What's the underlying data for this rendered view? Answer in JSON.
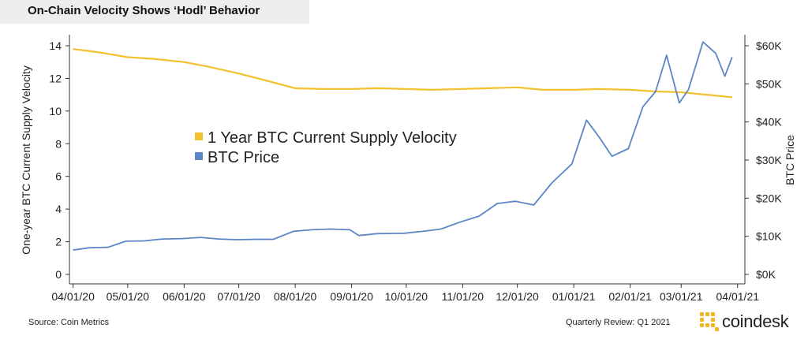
{
  "title": "On-Chain Velocity Shows ‘Hodl’ Behavior",
  "footer": {
    "source": "Source: Coin Metrics",
    "review": "Quarterly Review: Q1 2021",
    "logo_text": "coindesk"
  },
  "colors": {
    "velocity": "#f2c12e",
    "price": "#5b86c5",
    "brand": "#f1b623"
  },
  "chart_data": {
    "type": "line",
    "title": "On-Chain Velocity Shows ‘Hodl’ Behavior",
    "x_ticks": [
      "04/01/20",
      "05/01/20",
      "06/01/20",
      "07/01/20",
      "08/01/20",
      "09/01/20",
      "10/01/20",
      "11/01/20",
      "12/01/20",
      "01/01/21",
      "02/01/21",
      "03/01/21",
      "04/01/21"
    ],
    "ylabel": "One-year BTC Current Supply Velocity",
    "ylim": [
      0,
      14
    ],
    "y_ticks": [
      "0",
      "2",
      "4",
      "6",
      "8",
      "10",
      "12",
      "14"
    ],
    "y2label": "BTC Price",
    "y2lim": [
      0,
      60000
    ],
    "y2_ticks": [
      "$0K",
      "$10K",
      "$20K",
      "$30K",
      "$40K",
      "$50K",
      "$60K"
    ],
    "legend_position": "center-left",
    "grid": false,
    "series": [
      {
        "name": "1 Year BTC Current Supply Velocity",
        "axis": "left",
        "points": [
          [
            "2020-04-01",
            13.8
          ],
          [
            "2020-04-15",
            13.6
          ],
          [
            "2020-05-01",
            13.3
          ],
          [
            "2020-05-15",
            13.2
          ],
          [
            "2020-06-01",
            13.0
          ],
          [
            "2020-06-15",
            12.7
          ],
          [
            "2020-07-01",
            12.3
          ],
          [
            "2020-07-15",
            11.9
          ],
          [
            "2020-08-01",
            11.4
          ],
          [
            "2020-08-15",
            11.35
          ],
          [
            "2020-09-01",
            11.35
          ],
          [
            "2020-09-15",
            11.4
          ],
          [
            "2020-10-01",
            11.35
          ],
          [
            "2020-10-15",
            11.3
          ],
          [
            "2020-11-01",
            11.35
          ],
          [
            "2020-11-15",
            11.4
          ],
          [
            "2020-12-01",
            11.45
          ],
          [
            "2020-12-15",
            11.3
          ],
          [
            "2021-01-01",
            11.3
          ],
          [
            "2021-01-15",
            11.35
          ],
          [
            "2021-02-01",
            11.3
          ],
          [
            "2021-02-15",
            11.2
          ],
          [
            "2021-03-01",
            11.15
          ],
          [
            "2021-03-15",
            11.0
          ],
          [
            "2021-03-29",
            10.85
          ]
        ]
      },
      {
        "name": "BTC Price",
        "axis": "right",
        "points": [
          [
            "2020-04-01",
            6400
          ],
          [
            "2020-04-10",
            7000
          ],
          [
            "2020-04-20",
            7100
          ],
          [
            "2020-04-30",
            8700
          ],
          [
            "2020-05-10",
            8800
          ],
          [
            "2020-05-20",
            9300
          ],
          [
            "2020-05-31",
            9400
          ],
          [
            "2020-06-10",
            9700
          ],
          [
            "2020-06-20",
            9300
          ],
          [
            "2020-06-30",
            9100
          ],
          [
            "2020-07-10",
            9200
          ],
          [
            "2020-07-20",
            9200
          ],
          [
            "2020-07-31",
            11300
          ],
          [
            "2020-08-10",
            11700
          ],
          [
            "2020-08-20",
            11900
          ],
          [
            "2020-08-31",
            11700
          ],
          [
            "2020-09-05",
            10200
          ],
          [
            "2020-09-15",
            10700
          ],
          [
            "2020-09-30",
            10800
          ],
          [
            "2020-10-10",
            11300
          ],
          [
            "2020-10-20",
            11900
          ],
          [
            "2020-10-31",
            13800
          ],
          [
            "2020-11-10",
            15300
          ],
          [
            "2020-11-20",
            18600
          ],
          [
            "2020-11-30",
            19200
          ],
          [
            "2020-12-10",
            18200
          ],
          [
            "2020-12-20",
            24000
          ],
          [
            "2020-12-31",
            29000
          ],
          [
            "2021-01-08",
            40500
          ],
          [
            "2021-01-15",
            36000
          ],
          [
            "2021-01-22",
            31000
          ],
          [
            "2021-01-31",
            33000
          ],
          [
            "2021-02-08",
            44000
          ],
          [
            "2021-02-15",
            48000
          ],
          [
            "2021-02-21",
            57500
          ],
          [
            "2021-02-28",
            45000
          ],
          [
            "2021-03-05",
            48500
          ],
          [
            "2021-03-13",
            61000
          ],
          [
            "2021-03-20",
            58000
          ],
          [
            "2021-03-25",
            52000
          ],
          [
            "2021-03-29",
            57000
          ]
        ]
      }
    ]
  }
}
